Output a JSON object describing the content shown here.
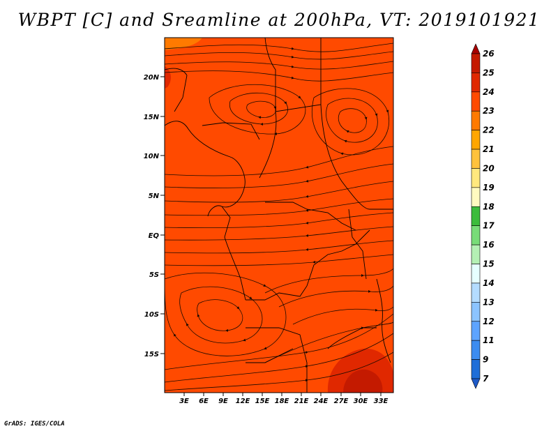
{
  "title": "WBPT [C] and Sreamline at 200hPa, VT: 2019101921",
  "credit": "GrADS: IGES/COLA",
  "map": {
    "lat_labels": [
      "20N",
      "15N",
      "10N",
      "5N",
      "EQ",
      "5S",
      "10S",
      "15S"
    ],
    "lon_labels": [
      "3E",
      "6E",
      "9E",
      "12E",
      "15E",
      "18E",
      "21E",
      "24E",
      "27E",
      "30E",
      "33E"
    ],
    "fill_color": "#ff4a00"
  },
  "colorbar": {
    "labels": [
      "26",
      "25",
      "24",
      "23",
      "22",
      "21",
      "20",
      "19",
      "18",
      "17",
      "16",
      "15",
      "14",
      "13",
      "12",
      "11",
      "9",
      "7"
    ],
    "colors": [
      "#a80000",
      "#c41a00",
      "#e02800",
      "#ff4a00",
      "#ff7a00",
      "#ffa600",
      "#ffc23c",
      "#ffe87e",
      "#fffac0",
      "#3cbc3c",
      "#78dc78",
      "#b4f0b4",
      "#e6ffff",
      "#b4dcff",
      "#8cc4ff",
      "#5ea4ff",
      "#3c8cf0",
      "#1e6ed8",
      "#1e5ac8"
    ]
  }
}
